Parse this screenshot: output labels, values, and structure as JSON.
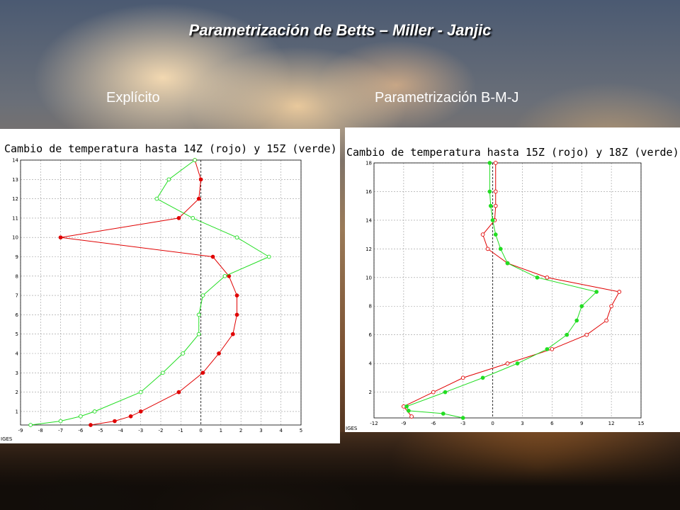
{
  "page": {
    "title": "Parametrización de Betts – Miller - Janjic",
    "left_label": "Explícito",
    "right_label": "Parametrización B-M-J"
  },
  "colors": {
    "red": "#e00000",
    "green": "#22dd22"
  },
  "chart_data": [
    {
      "type": "line",
      "title": "Cambio de temperatura hasta 14Z (rojo) y 15Z (verde)",
      "footer": "IGES",
      "xlim": [
        -9,
        5
      ],
      "ylim": [
        0.3,
        14
      ],
      "xticks": [
        -9,
        -8,
        -7,
        -6,
        -5,
        -4,
        -3,
        -2,
        -1,
        0,
        1,
        2,
        3,
        4,
        5
      ],
      "yticks": [
        1,
        2,
        3,
        4,
        5,
        6,
        7,
        8,
        9,
        10,
        11,
        12,
        13,
        14
      ],
      "series": [
        {
          "color": "#e00000",
          "marker": "filled",
          "x": [
            -5.5,
            -4.3,
            -3.5,
            -3.0,
            -1.1,
            0.1,
            0.9,
            1.6,
            1.8,
            1.8,
            1.4,
            0.6,
            -7.0,
            -1.1,
            -0.1,
            0.0,
            -0.3
          ],
          "y": [
            0.3,
            0.5,
            0.75,
            1.0,
            2.0,
            3.0,
            4.0,
            5.0,
            6.0,
            7.0,
            8.0,
            9.0,
            10.0,
            11.0,
            12.0,
            13.0,
            14.0
          ]
        },
        {
          "color": "#22dd22",
          "marker": "open",
          "x": [
            -8.5,
            -7.0,
            -6.0,
            -5.3,
            -3.0,
            -1.9,
            -0.9,
            -0.1,
            -0.1,
            0.1,
            1.2,
            3.4,
            1.8,
            -0.4,
            -2.2,
            -1.6,
            -0.3
          ],
          "y": [
            0.3,
            0.5,
            0.75,
            1.0,
            2.0,
            3.0,
            4.0,
            5.0,
            6.0,
            7.0,
            8.0,
            9.0,
            10.0,
            11.0,
            12.0,
            13.0,
            14.0
          ]
        }
      ]
    },
    {
      "type": "line",
      "title": "Cambio de temperatura hasta 15Z (rojo) y 18Z (verde)",
      "footer": "IGES",
      "xlim": [
        -12,
        15
      ],
      "ylim": [
        0.2,
        18
      ],
      "xticks": [
        -12,
        -9,
        -6,
        -3,
        0,
        3,
        6,
        9,
        12,
        15
      ],
      "yticks": [
        2,
        4,
        6,
        8,
        10,
        12,
        14,
        16,
        18
      ],
      "series": [
        {
          "color": "#e00000",
          "marker": "open",
          "x": [
            -8.2,
            -9.0,
            -6.0,
            -3.0,
            1.5,
            6.0,
            9.5,
            11.5,
            12.0,
            12.8,
            5.5,
            1.5,
            -0.5,
            -1.0,
            0.2,
            0.3,
            0.3,
            0.3
          ],
          "y": [
            0.3,
            1.0,
            2.0,
            3.0,
            4.0,
            5.0,
            6.0,
            7.0,
            8.0,
            9.0,
            10.0,
            11.0,
            12.0,
            13.0,
            14.0,
            15.0,
            16.0,
            18.0
          ]
        },
        {
          "color": "#22dd22",
          "marker": "filled",
          "x": [
            -3.0,
            -5.0,
            -8.5,
            -8.7,
            -4.8,
            -1.0,
            2.5,
            5.5,
            7.5,
            8.5,
            9.0,
            10.5,
            4.5,
            1.5,
            0.8,
            0.3,
            0.0,
            -0.2,
            -0.3,
            -0.3
          ],
          "y": [
            0.2,
            0.5,
            0.7,
            1.0,
            2.0,
            3.0,
            4.0,
            5.0,
            6.0,
            7.0,
            8.0,
            9.0,
            10.0,
            11.0,
            12.0,
            13.0,
            14.0,
            15.0,
            16.0,
            18.0
          ]
        }
      ]
    }
  ]
}
